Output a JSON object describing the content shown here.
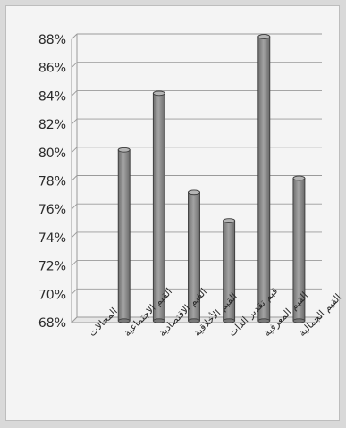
{
  "chart_data": {
    "type": "bar",
    "title": "",
    "xlabel": "",
    "ylabel": "",
    "ylim": [
      68,
      88
    ],
    "y_ticks": [
      68,
      70,
      72,
      74,
      76,
      78,
      80,
      82,
      84,
      86,
      88
    ],
    "y_tick_suffix": "%",
    "grid": true,
    "legend": "none",
    "categories": [
      "المجالات",
      "القيم الاجتماعية",
      "القيم الاقتصادية",
      "القيم الأخلاقية",
      "قيم تقدير الذات",
      "القيم المعرفية",
      "القيم الجمالية"
    ],
    "values": [
      null,
      80,
      84,
      77,
      75,
      88,
      78
    ],
    "colors": {
      "bar": "#8d8d8d",
      "bar_edge": "#3a3a3a",
      "grid": "#9a9a9a",
      "text": "#2a2a2a"
    }
  }
}
